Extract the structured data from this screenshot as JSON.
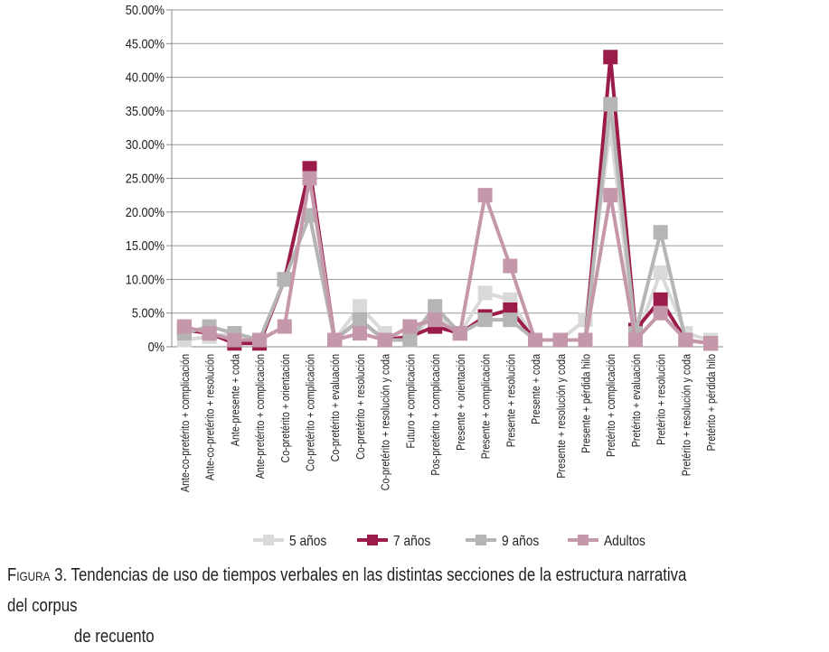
{
  "chart_data": {
    "type": "line",
    "yaxis_ticks": [
      "0%",
      "5.00%",
      "10.00%",
      "15.00%",
      "20.00%",
      "25.00%",
      "30.00%",
      "35.00%",
      "40.00%",
      "45.00%",
      "50.00%"
    ],
    "ylim": [
      0,
      50
    ],
    "grid": true,
    "legend_position": "bottom",
    "categories": [
      "Ante-co-pretérito + complicación",
      "Ante-co-pretérito + resolución",
      "Ante-presente + coda",
      "Ante-pretérito + complicación",
      "Co-pretérito + orientación",
      "Co-pretérito + complicación",
      "Co-pretérito + evaluación",
      "Co-pretérito + resolución",
      "Co-pretérito + resolución y coda",
      "Futuro + complicación",
      "Pos-pretérito + complicación",
      "Presente + orientación",
      "Presente + complicación",
      "Presente + resolución",
      "Presente + coda",
      "Presente + resolución y coda",
      "Presente + pérdida hilo",
      "Pretérito + complicación",
      "Pretérito + evaluación",
      "Pretérito + resolución",
      "Pretérito + resolución y coda",
      "Pretérito + pérdida hilo"
    ],
    "series": [
      {
        "name": "5 años",
        "color": "#d9d9d9",
        "values": [
          1,
          1.5,
          2,
          1,
          10,
          19.5,
          1,
          6,
          2,
          1,
          5,
          2,
          8,
          7,
          1,
          1,
          4,
          32.5,
          1,
          11,
          2,
          1
        ]
      },
      {
        "name": "7 años",
        "color": "#9b1b4b",
        "values": [
          2.5,
          2,
          0.5,
          0.5,
          10,
          26.5,
          1,
          4,
          1,
          1.5,
          3,
          2,
          4.5,
          5.5,
          1,
          1,
          1,
          43,
          2.5,
          7,
          1,
          0.5
        ]
      },
      {
        "name": "9 años",
        "color": "#b5b5b5",
        "values": [
          2,
          3,
          2,
          1,
          10,
          19.5,
          1,
          4,
          1,
          1,
          6,
          2,
          4,
          4,
          1,
          1,
          1,
          36,
          2,
          17,
          1,
          0.5
        ]
      },
      {
        "name": "Adultos",
        "color": "#c597ab",
        "values": [
          3,
          2,
          1,
          1,
          3,
          25,
          1,
          2,
          1,
          3,
          4,
          2,
          22.5,
          12,
          1,
          1,
          1,
          22.5,
          1,
          5,
          1,
          0.5
        ]
      }
    ]
  },
  "caption": {
    "figure_label": "Figura 3.",
    "line1": "Tendencias de uso de tiempos verbales en las distintas secciones de la estructura narrativa del corpus",
    "line2": "de recuento"
  }
}
